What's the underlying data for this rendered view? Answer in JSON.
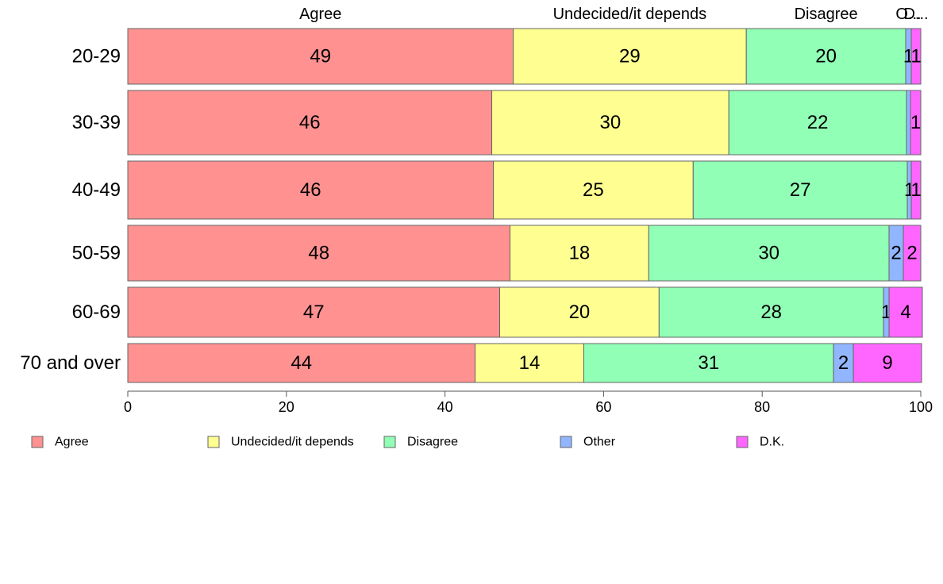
{
  "chart_data": {
    "type": "bar",
    "orientation": "horizontal",
    "stacked": true,
    "categories": [
      "20-29",
      "30-39",
      "40-49",
      "50-59",
      "60-69",
      "70 and over"
    ],
    "series": [
      {
        "name": "Agree",
        "color": "#ff9191",
        "values": [
          48.6,
          45.9,
          46.1,
          48.2,
          46.9,
          43.8
        ],
        "labels": [
          "49",
          "46",
          "46",
          "48",
          "47",
          "44"
        ]
      },
      {
        "name": "Undecided/it depends",
        "color": "#ffff91",
        "values": [
          29.4,
          29.9,
          25.2,
          17.5,
          20.1,
          13.7
        ],
        "labels": [
          "29",
          "30",
          "25",
          "18",
          "20",
          "14"
        ]
      },
      {
        "name": "Disagree",
        "color": "#91ffb6",
        "values": [
          20.1,
          22.4,
          27.0,
          30.3,
          28.3,
          31.5
        ],
        "labels": [
          "20",
          "22",
          "27",
          "30",
          "28",
          "31"
        ]
      },
      {
        "name": "Other",
        "color": "#91b6ff",
        "values": [
          0.7,
          0.5,
          0.5,
          1.8,
          0.7,
          2.5
        ],
        "labels": [
          "1",
          "",
          "1",
          "2",
          "1",
          "2"
        ]
      },
      {
        "name": "D.K.",
        "color": "#ff66ff",
        "values": [
          1.2,
          1.3,
          1.2,
          2.2,
          4.2,
          8.6
        ],
        "labels": [
          "1",
          "1",
          "1",
          "2",
          "4",
          "9"
        ]
      }
    ],
    "column_headers": [
      "Agree",
      "Undecided/it depends",
      "Disagree",
      "O...",
      "D..."
    ],
    "x_ticks": [
      "0",
      "20",
      "40",
      "60",
      "80",
      "100"
    ],
    "xlim": [
      0,
      100
    ],
    "grid": false,
    "legend_position": "bottom"
  }
}
